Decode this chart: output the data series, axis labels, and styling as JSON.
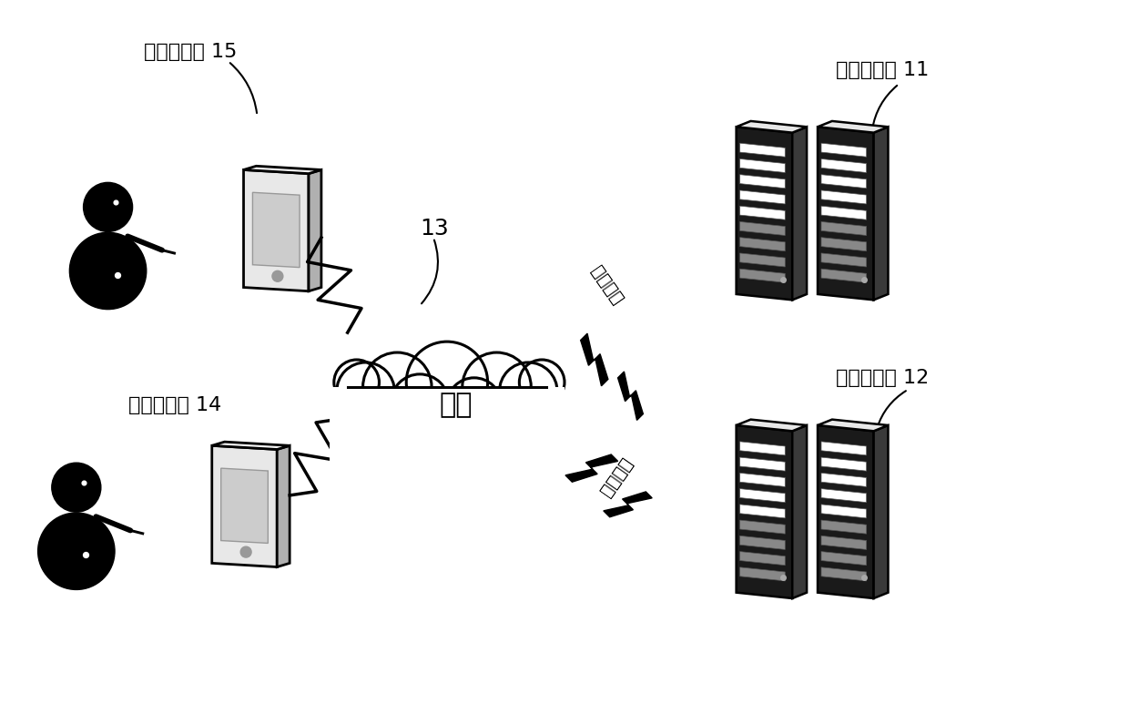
{
  "bg_color": "#ffffff",
  "labels": {
    "user15": "用户侧终端 15",
    "user14": "用户侧终端 14",
    "network": "网络",
    "network_id": "13",
    "template_server": "模版服务器 11",
    "backend_server": "后台服务器 12",
    "template_config": "模版配置",
    "business_content": "业务内容"
  },
  "font_size_label": 16,
  "font_size_id": 18,
  "font_size_network": 22
}
